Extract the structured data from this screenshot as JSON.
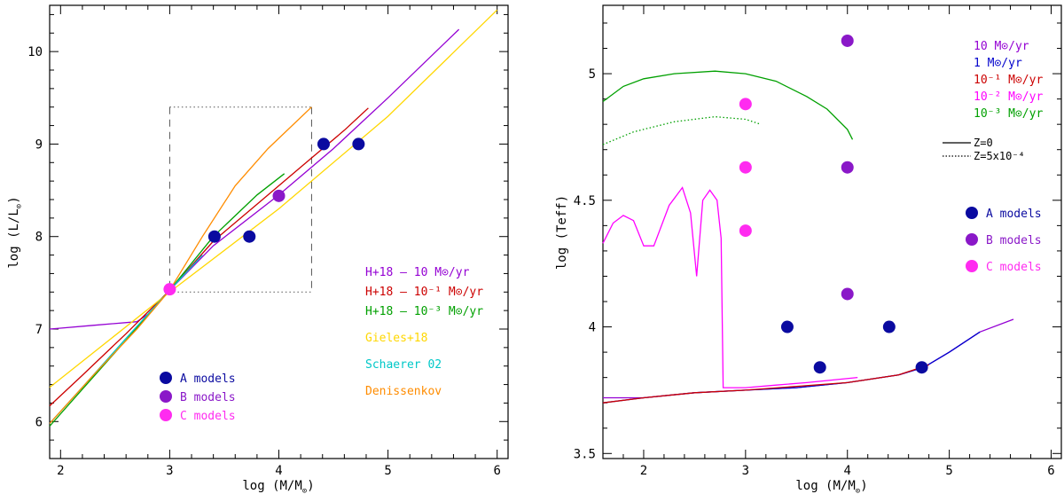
{
  "chart_data": [
    {
      "type": "line",
      "xlabel_main": "log (M/M",
      "xlabel_sub": "⊙",
      "xlabel_end": ")",
      "ylabel_main": "log (L/L",
      "ylabel_sub": "⊙",
      "ylabel_end": ")",
      "xlim": [
        1.9,
        6.1
      ],
      "ylim": [
        5.6,
        10.5
      ],
      "xticks": [
        "2",
        "3",
        "4",
        "5",
        "6"
      ],
      "yticks": [
        "6",
        "7",
        "8",
        "9",
        "10"
      ],
      "series": [
        {
          "name": "H+18 – 10 M⊙/yr",
          "color": "#9400d3",
          "x": [
            1.9,
            2.0,
            2.3,
            2.7,
            2.8,
            3.0,
            3.4,
            4.0,
            4.5,
            5.0,
            5.65
          ],
          "y": [
            7.0,
            7.01,
            7.04,
            7.08,
            7.16,
            7.42,
            7.9,
            8.45,
            8.95,
            9.5,
            10.24
          ]
        },
        {
          "name": "H+18 – 10^-1 M⊙/yr",
          "color": "#cc0000",
          "x": [
            1.9,
            2.2,
            2.6,
            3.0,
            3.4,
            3.8,
            4.2,
            4.6,
            4.82
          ],
          "y": [
            6.17,
            6.5,
            6.95,
            7.42,
            7.95,
            8.35,
            8.75,
            9.15,
            9.39
          ]
        },
        {
          "name": "H+18 – 10^-3 M⊙/yr",
          "color": "#00a000",
          "x": [
            1.9,
            2.2,
            2.6,
            3.0,
            3.4,
            3.8,
            4.05
          ],
          "y": [
            5.95,
            6.35,
            6.88,
            7.42,
            8.0,
            8.45,
            8.68
          ]
        },
        {
          "name": "Gieles+18",
          "color": "#ffd700",
          "x": [
            1.9,
            3.0,
            4.0,
            5.0,
            6.0
          ],
          "y": [
            6.37,
            7.4,
            8.3,
            9.3,
            10.45
          ]
        },
        {
          "name": "Schaerer 02",
          "color": "#00c8c8",
          "x": [
            1.9,
            2.2,
            2.6,
            3.0,
            3.3
          ],
          "y": [
            5.98,
            6.37,
            6.9,
            7.42,
            7.8
          ]
        },
        {
          "name": "Denissenkov",
          "color": "#ff8c00",
          "x": [
            1.9,
            2.3,
            2.7,
            3.0,
            3.3,
            3.6,
            3.9,
            4.3
          ],
          "y": [
            5.98,
            6.5,
            7.0,
            7.42,
            8.0,
            8.55,
            8.95,
            9.4
          ]
        }
      ],
      "points": [
        {
          "model": "A",
          "x": 3.41,
          "y": 8.0
        },
        {
          "model": "A",
          "x": 3.73,
          "y": 8.0
        },
        {
          "model": "A",
          "x": 4.41,
          "y": 9.0
        },
        {
          "model": "A",
          "x": 4.73,
          "y": 9.0
        },
        {
          "model": "B",
          "x": 4.0,
          "y": 8.44
        },
        {
          "model": "C",
          "x": 3.0,
          "y": 7.43
        }
      ],
      "box": {
        "x": [
          3.0,
          4.3
        ],
        "y": [
          7.4,
          9.4
        ]
      },
      "legend_series": [
        "H+18 – 10 M⊙/yr",
        "H+18 – 10⁻¹ M⊙/yr",
        "H+18 – 10⁻³ M⊙/yr",
        "Gieles+18",
        "Schaerer 02",
        "Denissenkov"
      ],
      "legend_models": [
        "A models",
        "B models",
        "C models"
      ]
    },
    {
      "type": "line",
      "xlabel_main": "log (M/M",
      "xlabel_sub": "⊙",
      "xlabel_end": ")",
      "ylabel": "log (Teff)",
      "xlim": [
        1.6,
        6.1
      ],
      "ylim": [
        3.48,
        5.27
      ],
      "xticks": [
        "2",
        "3",
        "4",
        "5",
        "6"
      ],
      "yticks": [
        "3.5",
        "4",
        "4.5",
        "5"
      ],
      "series": [
        {
          "name": "10 M⊙/yr",
          "color": "#9400d3",
          "x": [
            1.6,
            2.0,
            2.5,
            3.0,
            3.5,
            4.0,
            4.5,
            4.75,
            5.0,
            5.3,
            5.63
          ],
          "y": [
            3.72,
            3.72,
            3.74,
            3.75,
            3.76,
            3.78,
            3.81,
            3.84,
            3.9,
            3.98,
            4.03
          ]
        },
        {
          "name": "1 M⊙/yr",
          "color": "#0000cc",
          "x": [
            1.6,
            2.0,
            2.5,
            3.0,
            3.5,
            4.0,
            4.5,
            4.75,
            5.0,
            5.3
          ],
          "y": [
            3.7,
            3.72,
            3.74,
            3.75,
            3.76,
            3.78,
            3.81,
            3.84,
            3.9,
            3.98
          ]
        },
        {
          "name": "10^-1 M⊙/yr",
          "color": "#cc0000",
          "x": [
            1.6,
            2.0,
            2.5,
            3.0,
            3.5,
            4.0,
            4.5,
            4.8
          ],
          "y": [
            3.7,
            3.72,
            3.74,
            3.75,
            3.765,
            3.78,
            3.81,
            3.85
          ]
        },
        {
          "name": "10^-2 M⊙/yr",
          "color": "#ff00ff",
          "x": [
            1.6,
            1.7,
            1.8,
            1.9,
            2.0,
            2.1,
            2.25,
            2.38,
            2.46,
            2.52,
            2.58,
            2.65,
            2.72,
            2.76,
            2.78,
            3.0,
            3.3,
            3.6,
            4.1
          ],
          "y": [
            4.33,
            4.41,
            4.44,
            4.42,
            4.32,
            4.32,
            4.48,
            4.55,
            4.45,
            4.2,
            4.5,
            4.54,
            4.5,
            4.35,
            3.76,
            3.76,
            3.77,
            3.78,
            3.8
          ]
        },
        {
          "name": "10^-3 M⊙/yr",
          "color": "#00a000",
          "x": [
            1.6,
            1.8,
            2.0,
            2.3,
            2.7,
            3.0,
            3.3,
            3.6,
            3.8,
            4.0,
            4.05
          ],
          "y": [
            4.89,
            4.95,
            4.98,
            5.0,
            5.01,
            5.0,
            4.97,
            4.91,
            4.86,
            4.78,
            4.74
          ]
        },
        {
          "name": "10^-3 M⊙/yr Z=5x10^-4",
          "color": "#00a000",
          "x": [
            1.6,
            1.9,
            2.3,
            2.7,
            3.0,
            3.15
          ],
          "y": [
            4.72,
            4.77,
            4.81,
            4.83,
            4.82,
            4.8
          ]
        }
      ],
      "points": [
        {
          "model": "A",
          "x": 3.41,
          "y": 4.0
        },
        {
          "model": "A",
          "x": 3.73,
          "y": 3.84
        },
        {
          "model": "A",
          "x": 4.41,
          "y": 4.0
        },
        {
          "model": "A",
          "x": 4.73,
          "y": 3.84
        },
        {
          "model": "B",
          "x": 4.0,
          "y": 5.13
        },
        {
          "model": "B",
          "x": 4.0,
          "y": 4.63
        },
        {
          "model": "B",
          "x": 4.0,
          "y": 4.13
        },
        {
          "model": "C",
          "x": 3.0,
          "y": 4.88
        },
        {
          "model": "C",
          "x": 3.0,
          "y": 4.63
        },
        {
          "model": "C",
          "x": 3.0,
          "y": 4.38
        }
      ],
      "legend_rates": [
        "10 M⊙/yr",
        "1 M⊙/yr",
        "10⁻¹ M⊙/yr",
        "10⁻² M⊙/yr",
        "10⁻³ M⊙/yr"
      ],
      "legend_z": [
        "Z=0",
        "Z=5x10⁻⁴"
      ],
      "legend_models": [
        "A models",
        "B models",
        "C models"
      ]
    }
  ],
  "colors": {
    "A": "#0a0aa0",
    "B": "#8a18c8",
    "C": "#ff2bf0"
  }
}
